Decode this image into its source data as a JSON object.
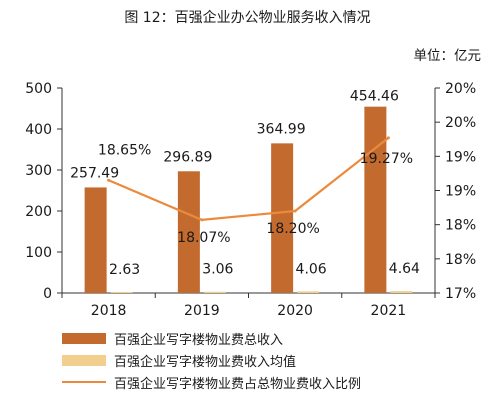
{
  "page": {
    "title": "图 12：百强企业办公物业服务收入情况",
    "unit": "单位：亿元"
  },
  "colors": {
    "total_bar": "#C36B2E",
    "avg_bar": "#F2CF8E",
    "ratio_line": "#EB8A3C",
    "axis": "#333333"
  },
  "chart_data": {
    "type": "bar",
    "categories": [
      "2018",
      "2019",
      "2020",
      "2021"
    ],
    "series": [
      {
        "name": "百强企业写字楼物业费总收入",
        "type": "bar",
        "axis": "left",
        "values": [
          257.49,
          296.89,
          364.99,
          454.46
        ],
        "labels": [
          "257.49",
          "296.89",
          "364.99",
          "454.46"
        ]
      },
      {
        "name": "百强企业写字楼物业费收入均值",
        "type": "bar",
        "axis": "left",
        "values": [
          2.63,
          3.06,
          4.06,
          4.64
        ],
        "labels": [
          "2.63",
          "3.06",
          "4.06",
          "4.64"
        ]
      },
      {
        "name": "百强企业写字楼物业费占总物业费收入比例",
        "type": "line",
        "axis": "right",
        "values": [
          18.65,
          18.07,
          18.2,
          19.27
        ],
        "labels": [
          "18.65%",
          "18.07%",
          "18.20%",
          "19.27%"
        ]
      }
    ],
    "y_left": {
      "ylim": [
        0,
        500
      ],
      "ticks": [
        0,
        100,
        200,
        300,
        400,
        500
      ],
      "tick_labels": [
        "0",
        "100",
        "200",
        "300",
        "400",
        "500"
      ]
    },
    "y_right": {
      "ylim": [
        17,
        20
      ],
      "ticks": [
        17,
        17.5,
        18,
        18.5,
        19,
        19.5,
        20
      ],
      "tick_labels": [
        "17%",
        "18%",
        "18%",
        "19%",
        "19%",
        "20%",
        "20%"
      ]
    },
    "grid": false,
    "legend_position": "bottom"
  }
}
